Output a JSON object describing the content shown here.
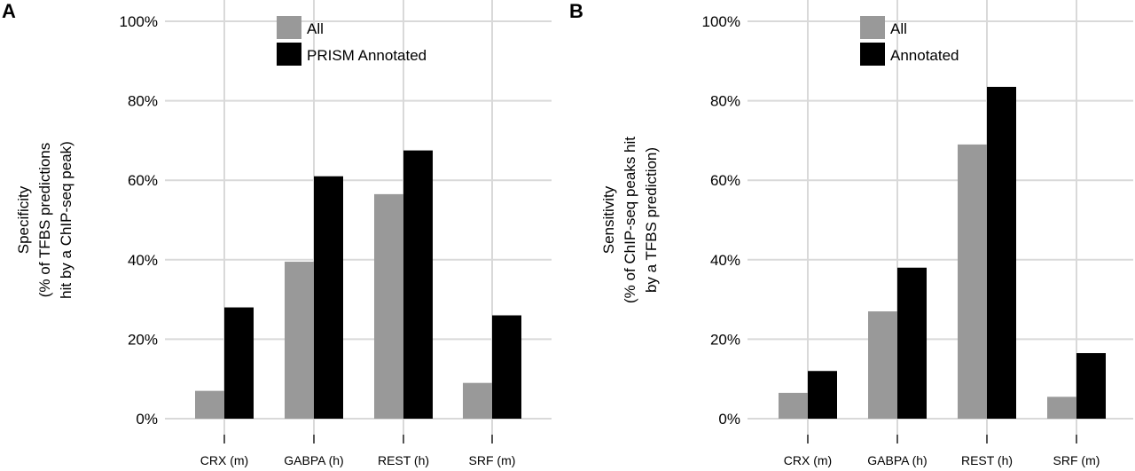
{
  "panels": [
    {
      "letter": "A",
      "ylabel_lines": [
        "Specificity",
        "(% of TFBS predictions",
        "hit by a ChIP-seq peak)"
      ]
    },
    {
      "letter": "B",
      "ylabel_lines": [
        "Sensitivity",
        "(% of ChIP-seq peaks hit",
        "by a TFBS prediction)"
      ]
    }
  ],
  "chart_data": [
    {
      "type": "bar",
      "panel": "A",
      "categories": [
        "CRX (m)",
        "GABPA (h)",
        "REST (h)",
        "SRF (m)"
      ],
      "series": [
        {
          "name": "All",
          "color": "#999999",
          "values": [
            7,
            39.5,
            56.5,
            9
          ]
        },
        {
          "name": "PRISM Annotated",
          "color": "#000000",
          "values": [
            28,
            61,
            67.5,
            26
          ]
        }
      ],
      "ylabel": "Specificity (% of TFBS predictions hit by a ChIP-seq peak)",
      "yticks": [
        "0%",
        "20%",
        "40%",
        "60%",
        "80%",
        "100%"
      ],
      "ylim": [
        0,
        100
      ],
      "grid": true,
      "legend": "top-center"
    },
    {
      "type": "bar",
      "panel": "B",
      "categories": [
        "CRX (m)",
        "GABPA (h)",
        "REST (h)",
        "SRF (m)"
      ],
      "series": [
        {
          "name": "All",
          "color": "#999999",
          "values": [
            6.5,
            27,
            69,
            5.5
          ]
        },
        {
          "name": "Annotated",
          "color": "#000000",
          "values": [
            12,
            38,
            83.5,
            16.5
          ]
        }
      ],
      "ylabel": "Sensitivity (% of ChIP-seq peaks hit by a TFBS prediction)",
      "yticks": [
        "0%",
        "20%",
        "40%",
        "60%",
        "80%",
        "100%"
      ],
      "ylim": [
        0,
        100
      ],
      "grid": true,
      "legend": "top-center"
    }
  ]
}
